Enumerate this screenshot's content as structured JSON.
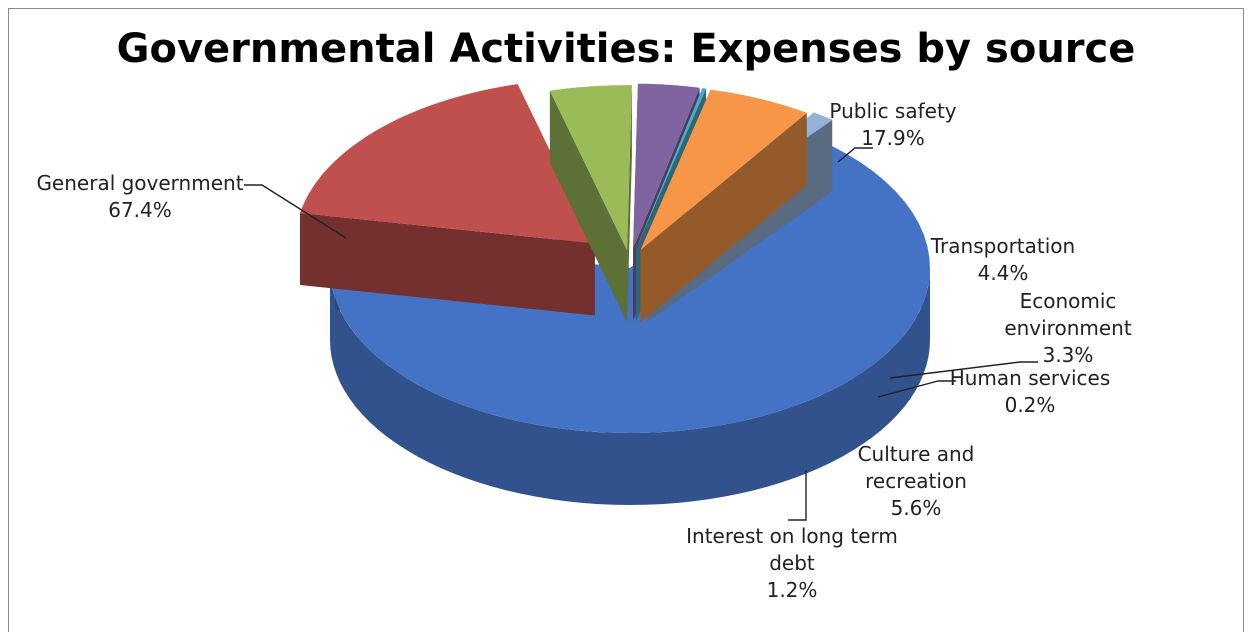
{
  "chart_data": {
    "type": "pie",
    "style": "3d-exploded",
    "title": "Governmental Activities: Expenses by source",
    "slices": [
      {
        "label": "General government",
        "value": 67.4,
        "display": "67.4%",
        "color": "#4472c4"
      },
      {
        "label": "Public safety",
        "value": 17.9,
        "display": "17.9%",
        "color": "#c0504d"
      },
      {
        "label": "Transportation",
        "value": 4.4,
        "display": "4.4%",
        "color": "#9bbb59"
      },
      {
        "label": "Economic environment",
        "value": 3.3,
        "display": "3.3%",
        "color": "#8064a2"
      },
      {
        "label": "Human services",
        "value": 0.2,
        "display": "0.2%",
        "color": "#4bacc6"
      },
      {
        "label": "Culture and recreation",
        "value": 5.6,
        "display": "5.6%",
        "color": "#f79646"
      },
      {
        "label": "Interest on long term debt",
        "value": 1.2,
        "display": "1.2%",
        "color": "#95b3d7"
      }
    ],
    "legend": "none",
    "data_labels": "outside-with-leader-lines"
  }
}
